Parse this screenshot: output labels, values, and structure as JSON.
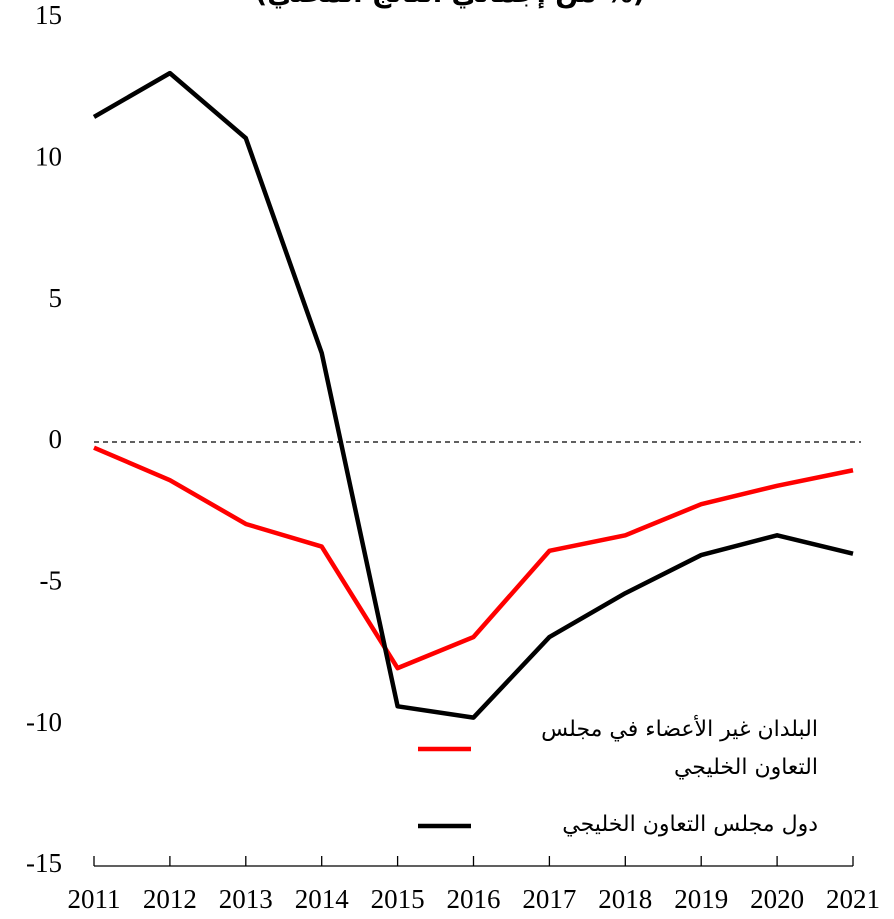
{
  "chart_data": {
    "type": "line",
    "title": "(% من إجمالي الناتج المحلي)",
    "x": [
      2011,
      2012,
      2013,
      2014,
      2015,
      2016,
      2017,
      2018,
      2019,
      2020,
      2021
    ],
    "xlim": [
      2011,
      2021
    ],
    "xticks": [
      2011,
      2012,
      2013,
      2014,
      2015,
      2016,
      2017,
      2018,
      2019,
      2020,
      2021
    ],
    "ylim": [
      -15,
      15
    ],
    "yticks": [
      -15,
      -10,
      -5,
      0,
      5,
      10,
      15
    ],
    "series": [
      {
        "name": "البلدان غير الأعضاء في مجلس التعاون الخليجي",
        "color": "#ff0000",
        "values": [
          -0.2,
          -1.35,
          -2.9,
          -3.7,
          -8.0,
          -6.9,
          -3.85,
          -3.3,
          -2.2,
          -1.55,
          -1.0
        ]
      },
      {
        "name": "دول مجلس التعاون الخليجي",
        "color": "#000000",
        "values": [
          11.5,
          13.05,
          10.75,
          3.15,
          -9.35,
          -9.75,
          -6.9,
          -5.35,
          -4.0,
          -3.3,
          -3.95
        ]
      }
    ]
  }
}
